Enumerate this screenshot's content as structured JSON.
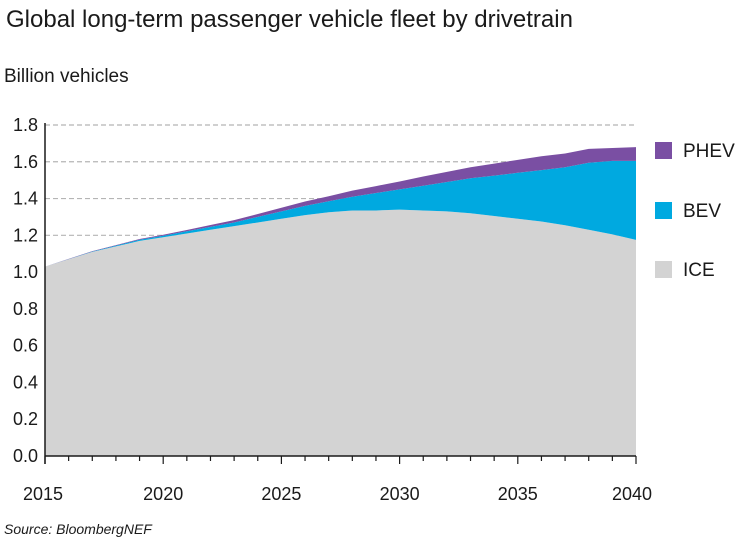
{
  "chart_data": {
    "type": "area",
    "title": "Global long-term passenger vehicle fleet by drivetrain",
    "ylabel": "Billion vehicles",
    "source": "Source: BloombergNEF",
    "ylim": [
      0,
      1.8
    ],
    "yticks": [
      "0.0",
      "0.2",
      "0.4",
      "0.6",
      "0.8",
      "1.0",
      "1.2",
      "1.4",
      "1.6",
      "1.8"
    ],
    "xticks": [
      2015,
      2020,
      2025,
      2030,
      2035,
      2040
    ],
    "x": [
      2015,
      2016,
      2017,
      2018,
      2019,
      2020,
      2021,
      2022,
      2023,
      2024,
      2025,
      2026,
      2027,
      2028,
      2029,
      2030,
      2031,
      2032,
      2033,
      2034,
      2035,
      2036,
      2037,
      2038,
      2039,
      2040
    ],
    "stacked": true,
    "grid": "dashed-horizontal",
    "legend_position": "right",
    "series": [
      {
        "name": "ICE",
        "color": "#d3d3d3",
        "values": [
          1.03,
          1.07,
          1.11,
          1.14,
          1.17,
          1.19,
          1.21,
          1.23,
          1.25,
          1.27,
          1.29,
          1.31,
          1.325,
          1.335,
          1.335,
          1.34,
          1.335,
          1.33,
          1.32,
          1.305,
          1.29,
          1.275,
          1.255,
          1.23,
          1.205,
          1.175
        ]
      },
      {
        "name": "BEV",
        "color": "#00a9e0",
        "values": [
          0.0,
          0.001,
          0.002,
          0.004,
          0.006,
          0.008,
          0.012,
          0.016,
          0.02,
          0.03,
          0.04,
          0.05,
          0.06,
          0.075,
          0.095,
          0.11,
          0.135,
          0.16,
          0.19,
          0.22,
          0.25,
          0.28,
          0.315,
          0.365,
          0.4,
          0.43
        ]
      },
      {
        "name": "PHEV",
        "color": "#7a4fa3",
        "values": [
          0.0,
          0.001,
          0.002,
          0.003,
          0.004,
          0.005,
          0.007,
          0.01,
          0.013,
          0.016,
          0.02,
          0.024,
          0.028,
          0.033,
          0.038,
          0.043,
          0.05,
          0.055,
          0.06,
          0.065,
          0.07,
          0.075,
          0.075,
          0.075,
          0.07,
          0.075
        ]
      }
    ]
  }
}
